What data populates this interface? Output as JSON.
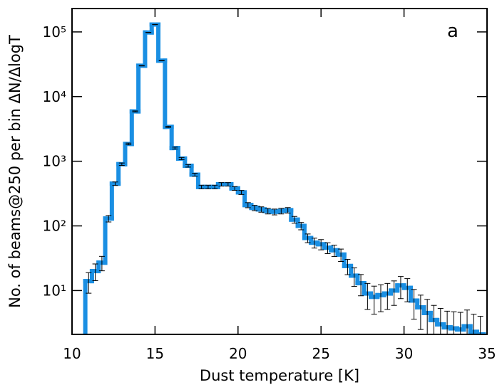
{
  "chart_data": {
    "type": "step-histogram",
    "xlabel": "Dust temperature [K]",
    "ylabel": "No. of beams@250 per bin ΔN/ΔlogT",
    "annotation": "a",
    "color": "#1a8fe3",
    "error_color": "#000000",
    "log_y": true,
    "xlim": [
      10,
      35
    ],
    "ylim": [
      2.1,
      230000
    ],
    "xticks": [
      10,
      15,
      20,
      25,
      30,
      35
    ],
    "yticks": [
      {
        "value": 10,
        "label": "10¹"
      },
      {
        "value": 100,
        "label": "10²"
      },
      {
        "value": 1000,
        "label": "10³"
      },
      {
        "value": 10000,
        "label": "10⁴"
      },
      {
        "value": 100000,
        "label": "10⁵"
      }
    ],
    "bins": [
      10.8,
      11.2,
      11.6,
      12.0,
      12.4,
      12.8,
      13.2,
      13.6,
      14.0,
      14.4,
      14.8,
      15.2,
      15.6,
      16.0,
      16.4,
      16.8,
      17.2,
      17.6,
      18.0,
      18.4,
      18.8,
      19.2,
      19.6,
      20.0,
      20.4,
      20.8,
      21.2,
      21.6,
      22.0,
      22.4,
      22.8,
      23.2,
      23.6,
      24.0,
      24.4,
      24.8,
      25.2,
      25.6,
      26.0,
      26.4,
      26.8,
      27.2,
      27.6,
      28.0,
      28.4,
      28.8,
      29.2,
      29.6,
      30.0,
      30.4,
      30.8,
      31.2,
      31.6,
      32.0,
      32.4,
      32.8,
      33.2,
      33.6,
      34.0,
      34.4,
      34.8
    ],
    "values": [
      14,
      20,
      27,
      130,
      450,
      900,
      1850,
      5900,
      30000,
      98000,
      130000,
      36000,
      3400,
      1600,
      1100,
      850,
      620,
      400,
      400,
      400,
      440,
      440,
      380,
      330,
      210,
      190,
      180,
      170,
      165,
      170,
      175,
      125,
      100,
      65,
      55,
      52,
      46,
      42,
      36,
      24,
      17,
      13,
      9,
      8,
      8.5,
      9,
      10,
      12,
      11,
      7,
      5.5,
      4.5,
      3.5,
      3,
      2.7,
      2.6,
      2.5,
      2.8,
      2.3,
      2.1
    ],
    "errors": [
      4.9,
      5.8,
      6.8,
      15,
      28,
      39,
      56,
      100,
      225,
      407,
      469,
      247,
      76,
      52,
      43,
      38,
      32,
      26,
      26,
      26,
      27,
      27,
      25,
      24,
      19,
      18,
      17,
      17,
      17,
      17,
      17,
      15,
      13,
      10,
      9.6,
      9.4,
      8.8,
      8.4,
      7.8,
      6.4,
      5.4,
      4.7,
      3.9,
      3.7,
      3.8,
      3.9,
      4.1,
      4.5,
      4.3,
      3.4,
      3,
      2.8,
      2.4,
      2.3,
      2.1,
      2.1,
      2.1,
      2.2,
      2,
      1.9
    ]
  }
}
